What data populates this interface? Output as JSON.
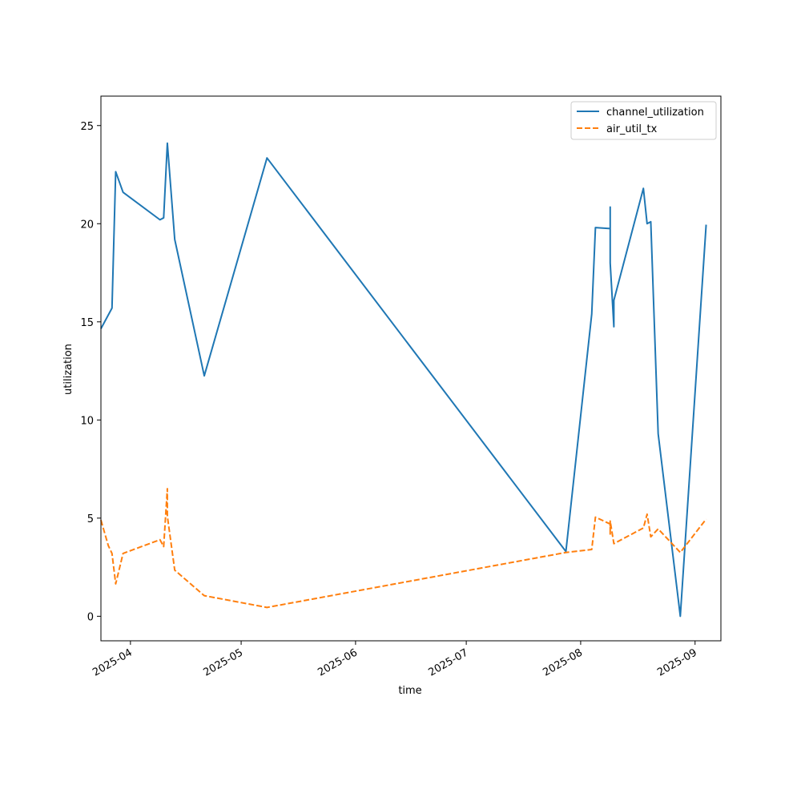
{
  "chart_data": {
    "type": "line",
    "xlabel": "time",
    "ylabel": "utilization",
    "ylim": [
      -1.25,
      26.5
    ],
    "xlim": [
      "2025-03-24",
      "2025-09-08"
    ],
    "grid": false,
    "legend_position": "top-right",
    "y_ticks": [
      0,
      5,
      10,
      15,
      20,
      25
    ],
    "x_ticks": [
      "2025-04",
      "2025-05",
      "2025-06",
      "2025-07",
      "2025-08",
      "2025-09"
    ],
    "series": [
      {
        "name": "channel_utilization",
        "color": "#1f77b4",
        "dash": "solid",
        "points": [
          [
            "2025-03-24",
            14.65
          ],
          [
            "2025-03-27",
            15.7
          ],
          [
            "2025-03-28",
            22.65
          ],
          [
            "2025-03-30",
            21.6
          ],
          [
            "2025-04-09",
            20.2
          ],
          [
            "2025-04-10",
            20.3
          ],
          [
            "2025-04-11",
            24.1
          ],
          [
            "2025-04-13",
            19.2
          ],
          [
            "2025-04-21",
            12.25
          ],
          [
            "2025-05-08",
            23.35
          ],
          [
            "2025-07-28",
            3.3
          ],
          [
            "2025-08-04",
            15.4
          ],
          [
            "2025-08-05",
            19.8
          ],
          [
            "2025-08-09",
            19.75
          ],
          [
            "2025-08-09",
            20.85
          ],
          [
            "2025-08-09",
            18.0
          ],
          [
            "2025-08-10",
            14.75
          ],
          [
            "2025-08-10",
            16.1
          ],
          [
            "2025-08-18",
            21.8
          ],
          [
            "2025-08-19",
            20.0
          ],
          [
            "2025-08-20",
            20.1
          ],
          [
            "2025-08-22",
            9.3
          ],
          [
            "2025-08-28",
            0.0
          ],
          [
            "2025-09-04",
            19.95
          ]
        ]
      },
      {
        "name": "air_util_tx",
        "color": "#ff7f0e",
        "dash": "dashed",
        "points": [
          [
            "2025-03-24",
            4.9
          ],
          [
            "2025-03-26",
            3.6
          ],
          [
            "2025-03-27",
            3.2
          ],
          [
            "2025-03-28",
            1.65
          ],
          [
            "2025-03-30",
            3.2
          ],
          [
            "2025-04-09",
            3.9
          ],
          [
            "2025-04-10",
            3.55
          ],
          [
            "2025-04-11",
            6.5
          ],
          [
            "2025-04-11",
            5.1
          ],
          [
            "2025-04-13",
            2.35
          ],
          [
            "2025-04-21",
            1.05
          ],
          [
            "2025-05-08",
            0.45
          ],
          [
            "2025-07-28",
            3.25
          ],
          [
            "2025-08-04",
            3.4
          ],
          [
            "2025-08-05",
            5.05
          ],
          [
            "2025-08-09",
            4.7
          ],
          [
            "2025-08-09",
            4.15
          ],
          [
            "2025-08-09",
            4.85
          ],
          [
            "2025-08-10",
            3.7
          ],
          [
            "2025-08-18",
            4.5
          ],
          [
            "2025-08-19",
            5.2
          ],
          [
            "2025-08-20",
            4.05
          ],
          [
            "2025-08-22",
            4.45
          ],
          [
            "2025-08-28",
            3.25
          ],
          [
            "2025-09-04",
            4.95
          ]
        ]
      }
    ]
  }
}
